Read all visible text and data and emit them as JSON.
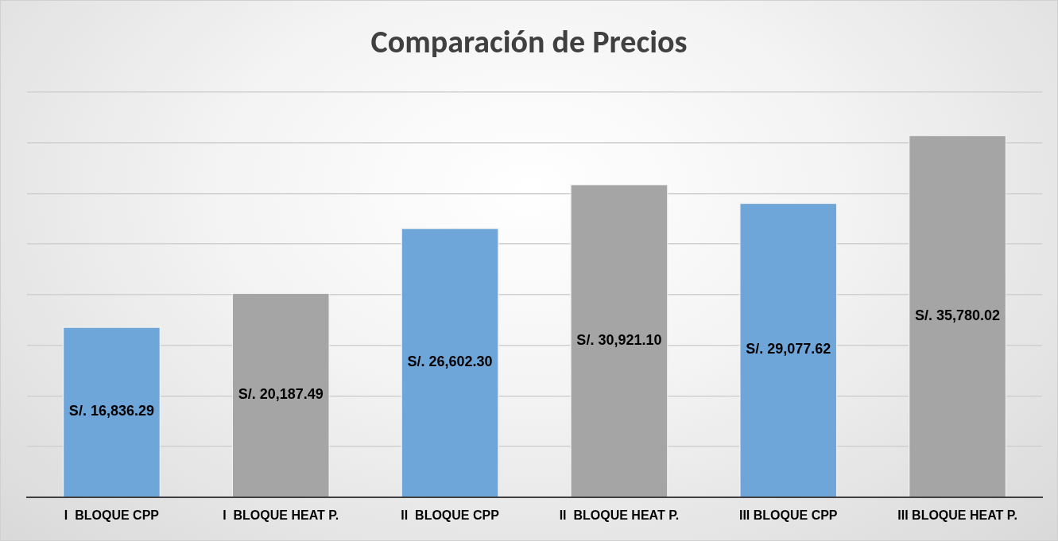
{
  "chart_data": {
    "type": "bar",
    "title": "Comparación de Precios",
    "categories": [
      "I  BLOQUE CPP",
      "I  BLOQUE HEAT P.",
      "II  BLOQUE CPP",
      "II  BLOQUE HEAT P.",
      "III BLOQUE CPP",
      "III BLOQUE HEAT P."
    ],
    "values": [
      16836.29,
      20187.49,
      26602.3,
      30921.1,
      29077.62,
      35780.02
    ],
    "colors": [
      "#6fa6da",
      "#a5a5a5",
      "#6fa6da",
      "#a5a5a5",
      "#6fa6da",
      "#a5a5a5"
    ],
    "value_labels": [
      "S/. 16,836.29",
      "S/. 20,187.49",
      "S/. 26,602.30",
      "S/. 30,921.10",
      "S/. 29,077.62",
      "S/. 35,780.02"
    ],
    "ylim": [
      0,
      40000
    ],
    "yticks": [
      {
        "value": 0,
        "label": null
      },
      {
        "value": 5000,
        "label": null
      },
      {
        "value": 10000,
        "label": null
      },
      {
        "value": 15000,
        "label": null
      },
      {
        "value": 20000,
        "label": null
      },
      {
        "value": 25000,
        "label": null
      },
      {
        "value": 30000,
        "label": null
      },
      {
        "value": 35000,
        "label": null
      },
      {
        "value": 40000,
        "label": null
      }
    ],
    "grid": "y",
    "legend": false,
    "tick_labels": "x"
  }
}
